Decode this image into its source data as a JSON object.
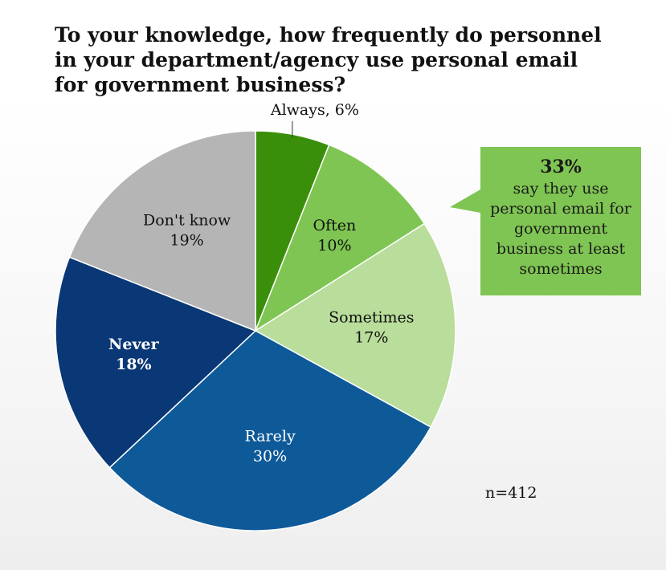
{
  "chart_data": {
    "type": "pie",
    "title": "To your knowledge, how frequently do personnel in your department/agency use personal email for government business?",
    "slices": [
      {
        "label": "Always",
        "value": 6,
        "value_label": "6%",
        "color": "#3a8f0a",
        "text_color": "#111111",
        "label_outside": true
      },
      {
        "label": "Often",
        "value": 10,
        "value_label": "10%",
        "color": "#7fc553",
        "text_color": "#111111"
      },
      {
        "label": "Sometimes",
        "value": 17,
        "value_label": "17%",
        "color": "#b9dd9a",
        "text_color": "#111111"
      },
      {
        "label": "Rarely",
        "value": 30,
        "value_label": "30%",
        "color": "#0e5a99",
        "text_color": "#ffffff"
      },
      {
        "label": "Never",
        "value": 18,
        "value_label": "18%",
        "color": "#0a3775",
        "text_color": "#ffffff",
        "bold": true
      },
      {
        "label": "Don't know",
        "value": 19,
        "value_label": "19%",
        "color": "#b5b5b5",
        "text_color": "#111111"
      }
    ],
    "start_angle_deg": 0,
    "direction": "clockwise",
    "legend": "none",
    "callout": {
      "highlight": "33%",
      "text_lines": [
        "say they use",
        "personal email for",
        "government",
        "business at least",
        "sometimes"
      ],
      "color": "#7fc553"
    },
    "sample_size": "n=412"
  }
}
